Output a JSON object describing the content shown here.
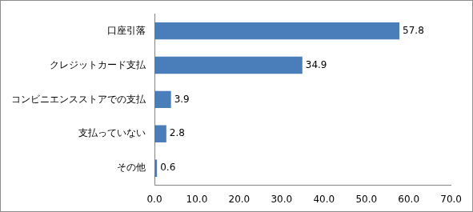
{
  "chart_data": {
    "type": "bar",
    "orientation": "horizontal",
    "categories": [
      "口座引落",
      "クレジットカード支払",
      "コンビニエンスストアでの支払",
      "支払っていない",
      "その他"
    ],
    "values": [
      57.8,
      34.9,
      3.9,
      2.8,
      0.6
    ],
    "color": "#4a7ebb",
    "xlim": [
      0,
      70
    ],
    "xticks": [
      {
        "value": 0,
        "label": "0.0"
      },
      {
        "value": 10,
        "label": "10.0"
      },
      {
        "value": 20,
        "label": "20.0"
      },
      {
        "value": 30,
        "label": "30.0"
      },
      {
        "value": 40,
        "label": "40.0"
      },
      {
        "value": 50,
        "label": "50.0"
      },
      {
        "value": 60,
        "label": "60.0"
      },
      {
        "value": 70,
        "label": "70.0"
      }
    ],
    "grid": false,
    "data_labels": true
  }
}
